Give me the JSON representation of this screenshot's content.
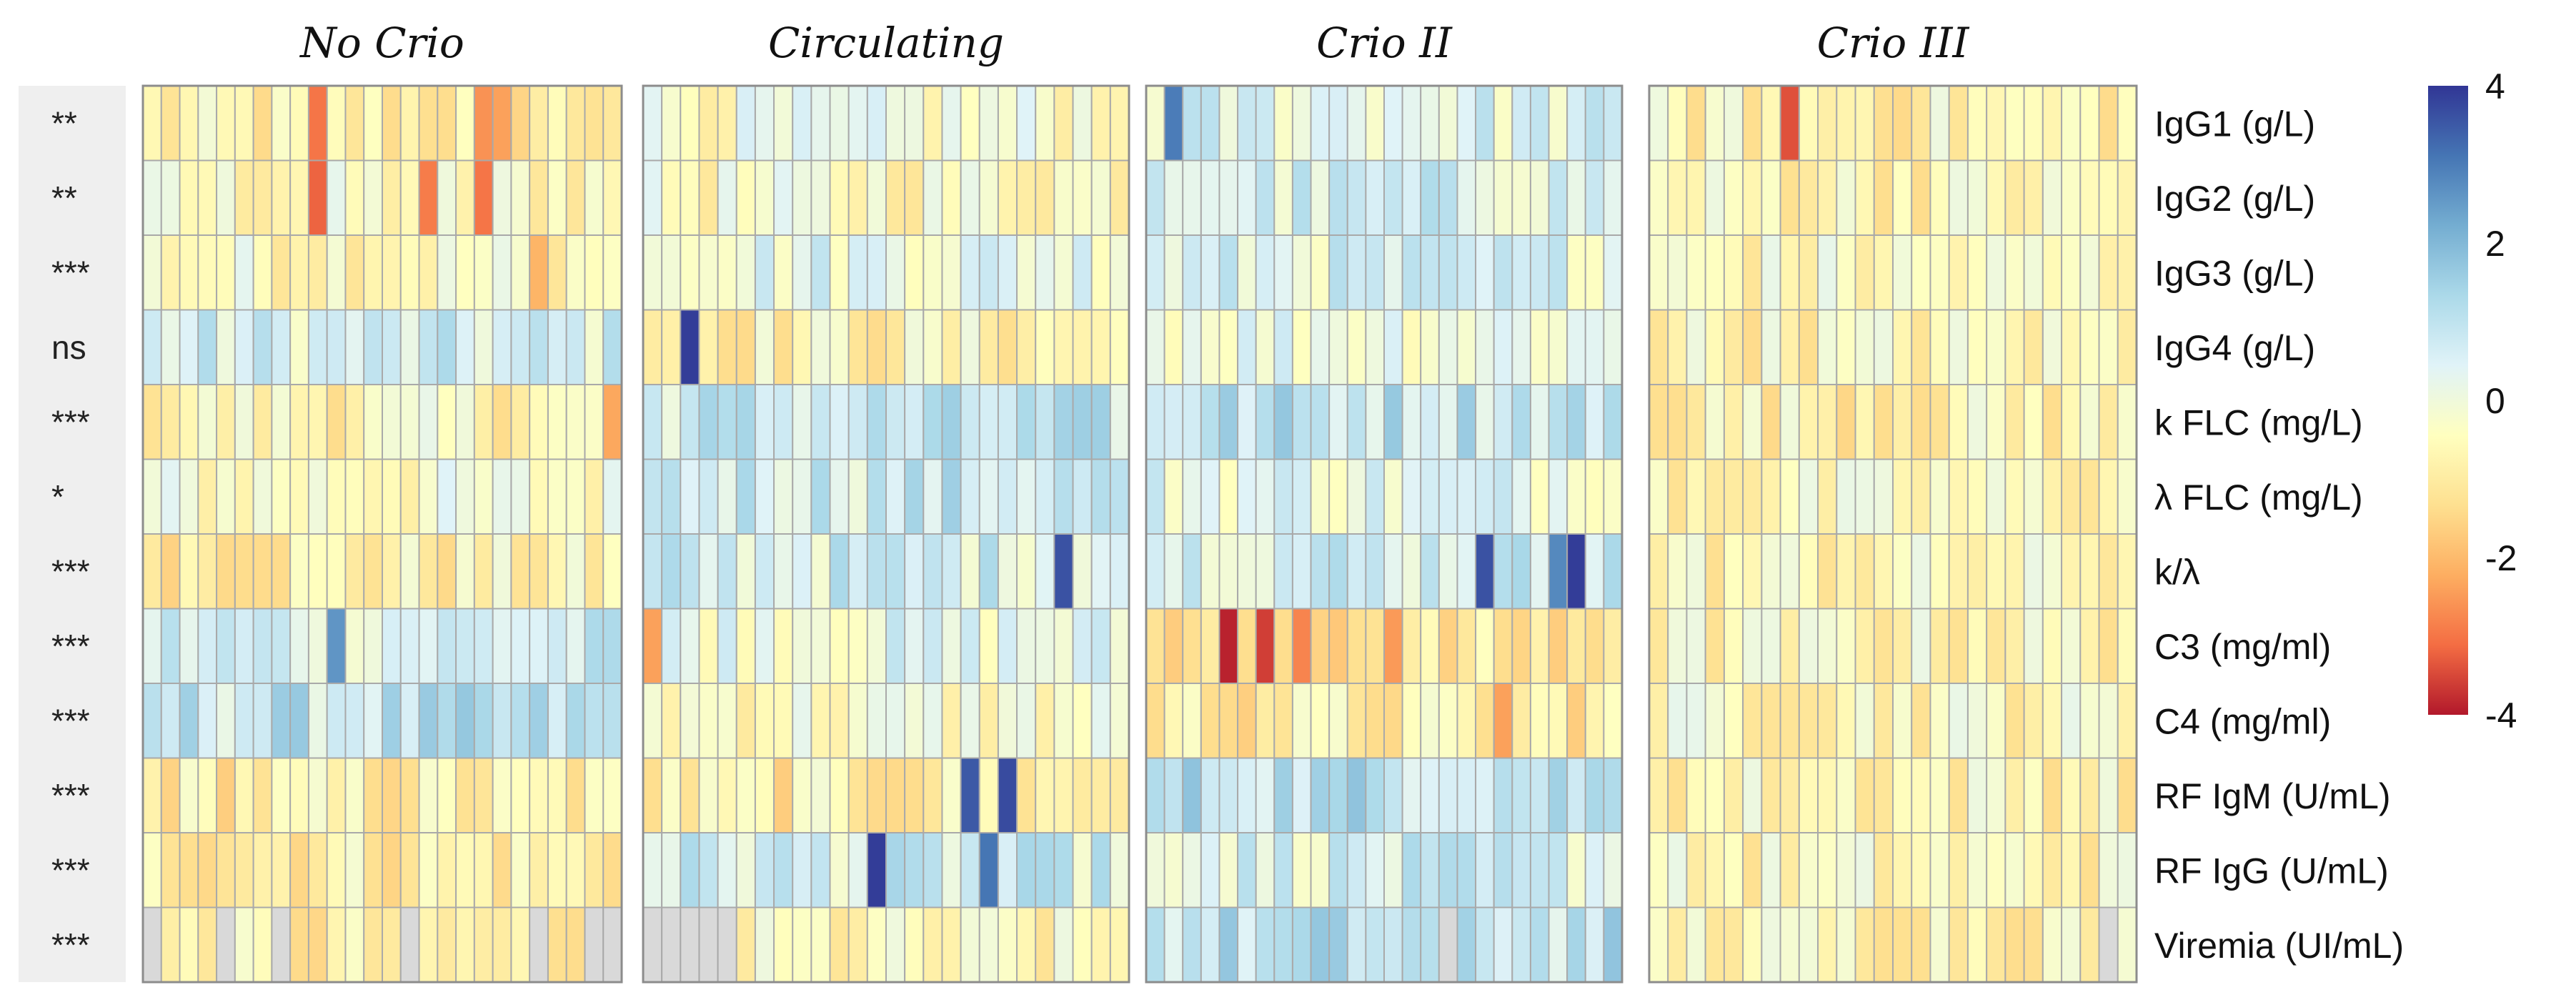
{
  "chart_data": {
    "type": "heatmap",
    "panels": [
      "No Crio",
      "Circulating",
      "Crio II",
      "Crio III"
    ],
    "columns_per_panel": [
      26,
      26,
      26,
      26
    ],
    "rows": [
      "IgG1 (g/L)",
      "IgG2 (g/L)",
      "IgG3 (g/L)",
      "IgG4 (g/L)",
      "k FLC (mg/L)",
      "λ FLC (mg/L)",
      "k/λ",
      "C3 (mg/ml)",
      "C4 (mg/ml)",
      "RF IgM (U/mL)",
      "RF IgG (U/mL)",
      "Viremia (UI/mL)"
    ],
    "significance": [
      "**",
      "**",
      "***",
      "ns",
      "***",
      "*",
      "***",
      "***",
      "***",
      "***",
      "***",
      "***"
    ],
    "colorbar": {
      "ticks": [
        "4",
        "2",
        "0",
        "-2",
        "-4"
      ],
      "tick_values": [
        4,
        2,
        0,
        -2,
        -4
      ],
      "range": [
        -4,
        4
      ],
      "colors": [
        "#b2182b",
        "#f46d43",
        "#fdae61",
        "#fee090",
        "#ffffbf",
        "#e0f3f8",
        "#abd9e9",
        "#74add1",
        "#4575b4",
        "#313695"
      ]
    },
    "missing_color": "#d9d9d9",
    "panel_tendency": [
      [
        -0.9,
        -0.5,
        -0.4,
        0.5,
        -0.6,
        -0.3,
        -0.8,
        0.6,
        0.9,
        -0.9,
        -0.8,
        -1.0
      ],
      [
        -0.2,
        -0.4,
        0.3,
        -0.7,
        0.8,
        0.8,
        0.6,
        0.2,
        -0.3,
        -0.9,
        0.6,
        -0.7
      ],
      [
        0.4,
        0.5,
        0.4,
        0.2,
        1.0,
        0.3,
        0.7,
        -1.2,
        -0.9,
        1.1,
        0.5,
        1.0
      ],
      [
        -0.7,
        -0.6,
        -0.5,
        -0.6,
        -0.7,
        -0.6,
        -0.6,
        -0.6,
        -0.5,
        -0.6,
        -0.6,
        -0.6
      ]
    ],
    "extreme_cells": [
      {
        "panel": 0,
        "row": 0,
        "col": 9,
        "value": -3.0
      },
      {
        "panel": 0,
        "row": 0,
        "col": 18,
        "value": -2.6
      },
      {
        "panel": 0,
        "row": 0,
        "col": 19,
        "value": -2.4
      },
      {
        "panel": 0,
        "row": 1,
        "col": 9,
        "value": -3.2
      },
      {
        "panel": 0,
        "row": 1,
        "col": 15,
        "value": -2.9
      },
      {
        "panel": 0,
        "row": 1,
        "col": 18,
        "value": -3.0
      },
      {
        "panel": 0,
        "row": 2,
        "col": 21,
        "value": -2.1
      },
      {
        "panel": 0,
        "row": 4,
        "col": 25,
        "value": -2.3
      },
      {
        "panel": 0,
        "row": 7,
        "col": 10,
        "value": 2.6
      },
      {
        "panel": 1,
        "row": 3,
        "col": 2,
        "value": 3.9
      },
      {
        "panel": 1,
        "row": 6,
        "col": 22,
        "value": 3.6
      },
      {
        "panel": 1,
        "row": 9,
        "col": 17,
        "value": 3.5
      },
      {
        "panel": 1,
        "row": 9,
        "col": 19,
        "value": 3.7
      },
      {
        "panel": 1,
        "row": 10,
        "col": 12,
        "value": 3.9
      },
      {
        "panel": 1,
        "row": 10,
        "col": 18,
        "value": 3.1
      },
      {
        "panel": 1,
        "row": 7,
        "col": 0,
        "value": -2.4
      },
      {
        "panel": 2,
        "row": 0,
        "col": 1,
        "value": 3.0
      },
      {
        "panel": 2,
        "row": 6,
        "col": 18,
        "value": 3.6
      },
      {
        "panel": 2,
        "row": 6,
        "col": 23,
        "value": 3.9
      },
      {
        "panel": 2,
        "row": 6,
        "col": 22,
        "value": 2.8
      },
      {
        "panel": 2,
        "row": 7,
        "col": 4,
        "value": -3.9
      },
      {
        "panel": 2,
        "row": 7,
        "col": 6,
        "value": -3.6
      },
      {
        "panel": 2,
        "row": 7,
        "col": 8,
        "value": -2.8
      },
      {
        "panel": 2,
        "row": 7,
        "col": 13,
        "value": -2.5
      },
      {
        "panel": 2,
        "row": 8,
        "col": 19,
        "value": -2.4
      },
      {
        "panel": 3,
        "row": 0,
        "col": 7,
        "value": -3.4
      }
    ]
  }
}
